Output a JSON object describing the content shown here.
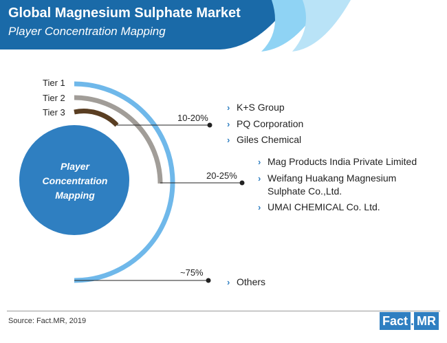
{
  "header": {
    "title": "Global Magnesium Sulphate Market",
    "subtitle": "Player Concentration Mapping"
  },
  "colors": {
    "header_dark": "#1a6aa8",
    "header_light": "#6fc3ee",
    "tier1": "#6fb8ea",
    "tier2": "#a19d98",
    "tier3": "#5a3e22",
    "center_circle": "#2f7fc1",
    "bullet": "#2f7fc1"
  },
  "center": {
    "line1": "Player",
    "line2": "Concentration",
    "line3": "Mapping"
  },
  "tiers": [
    {
      "label": "Tier 1",
      "share": "~75%",
      "companies": [
        "Others"
      ]
    },
    {
      "label": "Tier 2",
      "share": "20-25%",
      "companies": [
        "Mag Products India Private Limited",
        "Weifang Huakang Magnesium",
        "Sulphate Co.,Ltd.",
        "UMAI CHEMICAL Co. Ltd."
      ]
    },
    {
      "label": "Tier 3",
      "share": "10-20%",
      "companies": [
        "K+S Group",
        "PQ Corporation",
        "Giles Chemical"
      ]
    }
  ],
  "footer": {
    "source": "Source: Fact.MR, 2019",
    "logo_left": "Fact",
    "logo_dot": ".",
    "logo_right": "MR"
  }
}
